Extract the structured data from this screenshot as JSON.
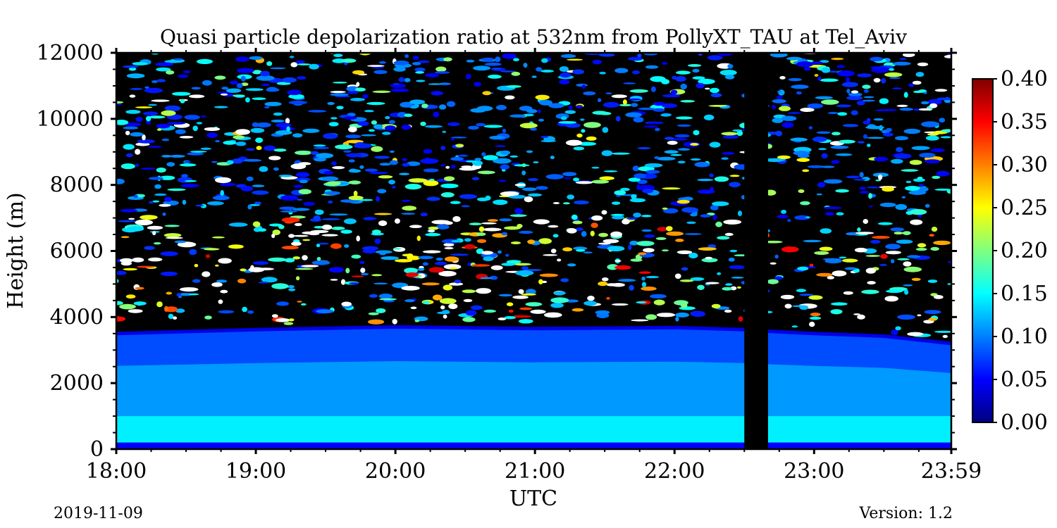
{
  "chart_data": {
    "type": "heatmap",
    "title": "Quasi particle depolarization ratio at 532nm from PollyXT_TAU at Tel_Aviv",
    "xlabel": "UTC",
    "ylabel": "Height (m)",
    "x_range_hours": [
      18.0,
      23.983
    ],
    "ylim": [
      0,
      12000
    ],
    "x_ticks": [
      "18:00",
      "19:00",
      "20:00",
      "21:00",
      "22:00",
      "23:00",
      "23:59"
    ],
    "x_tick_hours": [
      18,
      19,
      20,
      21,
      22,
      23,
      23.983
    ],
    "y_ticks": [
      "0",
      "2000",
      "4000",
      "6000",
      "8000",
      "10000",
      "12000"
    ],
    "y_tick_values": [
      0,
      2000,
      4000,
      6000,
      8000,
      10000,
      12000
    ],
    "colorbar": {
      "colormap": "jet",
      "range": [
        0.0,
        0.4
      ],
      "ticks": [
        "0.00",
        "0.05",
        "0.10",
        "0.15",
        "0.20",
        "0.25",
        "0.30",
        "0.35",
        "0.40"
      ],
      "tick_values": [
        0.0,
        0.05,
        0.1,
        0.15,
        0.2,
        0.25,
        0.3,
        0.35,
        0.4
      ]
    },
    "no_data_gap_hours": [
      22.5,
      22.67
    ],
    "aerosol_layer_top_m": [
      {
        "x": 18.0,
        "h": 3500
      },
      {
        "x": 19.0,
        "h": 3620
      },
      {
        "x": 20.0,
        "h": 3700
      },
      {
        "x": 21.0,
        "h": 3650
      },
      {
        "x": 22.0,
        "h": 3680
      },
      {
        "x": 22.5,
        "h": 3620
      },
      {
        "x": 22.67,
        "h": 3570
      },
      {
        "x": 23.0,
        "h": 3500
      },
      {
        "x": 23.5,
        "h": 3420
      },
      {
        "x": 23.983,
        "h": 3200
      }
    ],
    "layer_values": {
      "surface_band_0_200m": 0.05,
      "near_ground_200_1000m": 0.15,
      "lower_1000_2500m": 0.11,
      "upper_2500_3500m": 0.08,
      "layer_top_edge": 0.04
    },
    "grid": false
  },
  "footer": {
    "date": "2019-11-09",
    "version": "Version: 1.2"
  }
}
